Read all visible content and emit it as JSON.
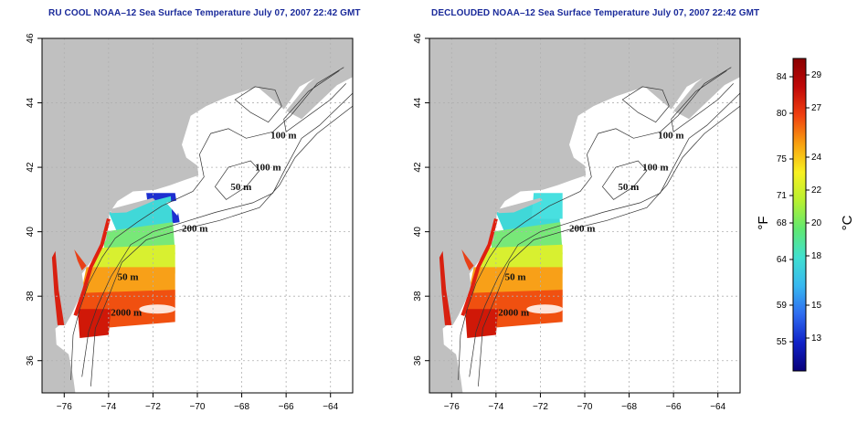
{
  "left_panel": {
    "title": "RU COOL NOAA–12 Sea Surface Temperature July 07, 2007 22:42 GMT",
    "variant": "cloud-masked"
  },
  "right_panel": {
    "title": "DECLOUDED NOAA–12 Sea Surface Temperature July 07, 2007 22:42 GMT",
    "variant": "declouded"
  },
  "map": {
    "x_ticks": [
      "−76",
      "−74",
      "−72",
      "−70",
      "−68",
      "−66",
      "−64"
    ],
    "y_ticks": [
      "36",
      "38",
      "40",
      "42",
      "44",
      "46"
    ],
    "lon_range": [
      -77,
      -63
    ],
    "lat_range": [
      35,
      46
    ],
    "grid": true,
    "contour_labels": [
      {
        "text": "100 m",
        "lon": -66.7,
        "lat": 42.9
      },
      {
        "text": "100 m",
        "lon": -67.4,
        "lat": 41.9
      },
      {
        "text": "50 m",
        "lon": -68.5,
        "lat": 41.3
      },
      {
        "text": "200 m",
        "lon": -70.7,
        "lat": 40.0
      },
      {
        "text": "50 m",
        "lon": -73.6,
        "lat": 38.5
      },
      {
        "text": "2000 m",
        "lon": -73.9,
        "lat": 37.4
      }
    ],
    "colors": {
      "land": "#c0c0c0",
      "ocean": "#ffffff",
      "grid": "#b0b0b0",
      "contour": "#333333"
    }
  },
  "colorbar": {
    "unit_f": "°F",
    "unit_c": "°C",
    "f_ticks": [
      "84",
      "80",
      "75",
      "71",
      "68",
      "64",
      "59",
      "55"
    ],
    "c_ticks": [
      "29",
      "27",
      "24",
      "22",
      "20",
      "18",
      "15",
      "13"
    ],
    "c_range": [
      11,
      30
    ],
    "palette": [
      "#08007a",
      "#1022c8",
      "#2f6cf0",
      "#38b8f0",
      "#40e0d0",
      "#60e870",
      "#b8f030",
      "#f8f020",
      "#f8a010",
      "#f04010",
      "#c00808",
      "#8a0000"
    ]
  }
}
